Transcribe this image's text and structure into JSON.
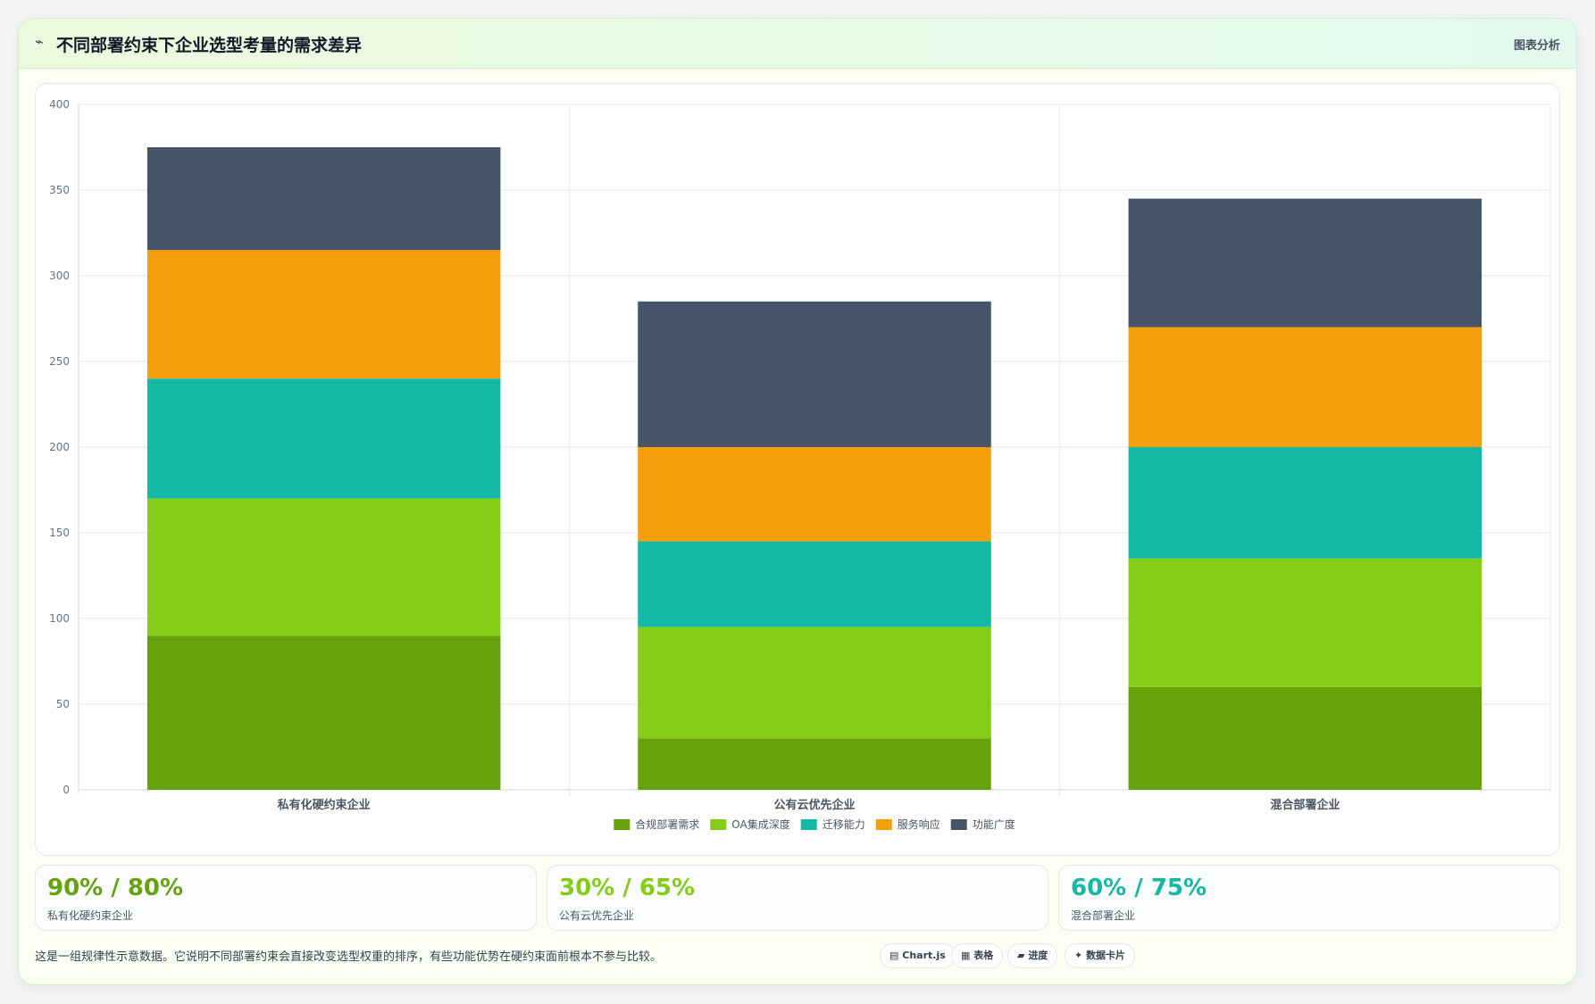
{
  "header": {
    "icon": "trend-icon",
    "icon_glyph": "⌁",
    "title": "不同部署约束下企业选型考量的需求差异",
    "action_label": "图表分析"
  },
  "colors": {
    "compliance": "#65a30d",
    "oa": "#84cc16",
    "migration": "#14b8a6",
    "service": "#f59e0b",
    "features": "#475569"
  },
  "chart_data": {
    "type": "bar",
    "stacked": true,
    "title": "",
    "xlabel": "",
    "ylabel": "",
    "categories": [
      "私有化硬约束企业",
      "公有云优先企业",
      "混合部署企业"
    ],
    "series": [
      {
        "name": "合规部署需求",
        "color": "#65a30d",
        "values": [
          90,
          30,
          60
        ]
      },
      {
        "name": "OA集成深度",
        "color": "#84cc16",
        "values": [
          80,
          65,
          75
        ]
      },
      {
        "name": "迁移能力",
        "color": "#14b8a6",
        "values": [
          70,
          50,
          65
        ]
      },
      {
        "name": "服务响应",
        "color": "#f59e0b",
        "values": [
          75,
          55,
          70
        ]
      },
      {
        "name": "功能广度",
        "color": "#475569",
        "values": [
          60,
          85,
          75
        ]
      }
    ],
    "ylim": [
      0,
      400
    ],
    "yticks": [
      0,
      50,
      100,
      150,
      200,
      250,
      300,
      350,
      400
    ],
    "grid": true,
    "legend": "bottom-center"
  },
  "stats": [
    {
      "value": "90% / 80%",
      "label": "私有化硬约束企业",
      "color": "#65a30d"
    },
    {
      "value": "30% / 65%",
      "label": "公有云优先企业",
      "color": "#84cc16"
    },
    {
      "value": "60% / 75%",
      "label": "混合部署企业",
      "color": "#14b8a6"
    }
  ],
  "footer": {
    "note": "这是一组规律性示意数据。它说明不同部署约束会直接改变选型权重的排序，有些功能优势在硬约束面前根本不参与比较。",
    "chips": [
      {
        "label": "Chart.js",
        "icon": "chart-icon",
        "glyph": "▤"
      },
      {
        "label": "表格",
        "icon": "table-icon",
        "glyph": "▦"
      },
      {
        "label": "进度",
        "icon": "progress-icon",
        "glyph": "▰"
      },
      {
        "label": "数据卡片",
        "icon": "card-icon",
        "glyph": "✦"
      }
    ]
  }
}
